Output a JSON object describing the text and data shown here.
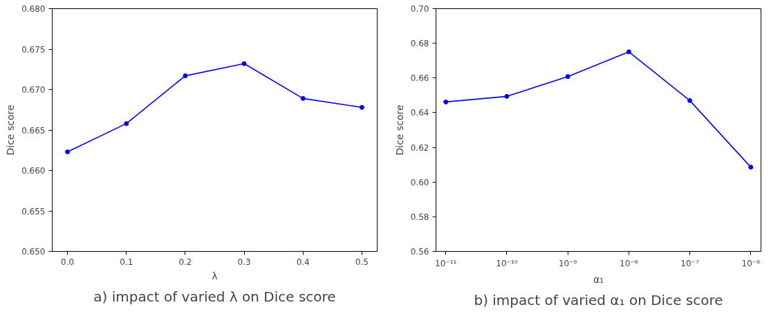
{
  "chart_data": [
    {
      "type": "line",
      "title": "a) impact of varied λ on Dice score",
      "xlabel": "λ",
      "ylabel": "Dice score",
      "x": [
        0.0,
        0.1,
        0.2,
        0.3,
        0.4,
        0.5
      ],
      "series": [
        {
          "color": "#0000ff",
          "values": [
            0.6623,
            0.6658,
            0.6717,
            0.6732,
            0.6689,
            0.6678
          ]
        }
      ],
      "xlim": [
        -0.026,
        0.526
      ],
      "ylim": [
        0.65,
        0.68
      ],
      "xticks": [
        {
          "value": 0.0,
          "label": "0.0"
        },
        0.1,
        0.2,
        0.3,
        0.4,
        0.5
      ],
      "yticks": [
        {
          "value": 0.65,
          "label": "0.650"
        },
        0.655,
        {
          "value": 0.66,
          "label": "0.660"
        },
        0.665,
        {
          "value": 0.67,
          "label": "0.670"
        },
        0.675,
        {
          "value": 0.68,
          "label": "0.680"
        }
      ],
      "grid": false,
      "marker": "circle",
      "line_style": "solid"
    },
    {
      "type": "line",
      "title": "b) impact of varied α₁ on Dice score",
      "xlabel": "α₁",
      "ylabel": "Dice score",
      "x": [
        1e-11,
        1e-10,
        1e-09,
        1e-08,
        1e-07,
        1e-06
      ],
      "series": [
        {
          "color": "#0000ff",
          "values": [
            0.6462,
            0.6494,
            0.6608,
            0.6751,
            0.647,
            0.6086
          ]
        }
      ],
      "log": "x",
      "xlim": [
        6.9e-12,
        1.47e-06
      ],
      "ylim": [
        0.56,
        0.7
      ],
      "xticks": [
        {
          "value": 1e-11,
          "label": "10⁻¹¹"
        },
        {
          "value": 1e-10,
          "label": "10⁻¹⁰"
        },
        {
          "value": 1e-09,
          "label": "10⁻⁹"
        },
        {
          "value": 1e-08,
          "label": "10⁻⁸"
        },
        {
          "value": 1e-07,
          "label": "10⁻⁷"
        },
        {
          "value": 1e-06,
          "label": "10⁻⁶"
        }
      ],
      "yticks": [
        {
          "value": 0.56,
          "label": "0.56"
        },
        {
          "value": 0.58,
          "label": "0.58"
        },
        {
          "value": 0.6,
          "label": "0.60"
        },
        {
          "value": 0.62,
          "label": "0.62"
        },
        {
          "value": 0.64,
          "label": "0.64"
        },
        {
          "value": 0.66,
          "label": "0.66"
        },
        {
          "value": 0.68,
          "label": "0.68"
        },
        {
          "value": 0.7,
          "label": "0.70"
        }
      ],
      "grid": false,
      "marker": "circle",
      "line_style": "solid"
    }
  ]
}
